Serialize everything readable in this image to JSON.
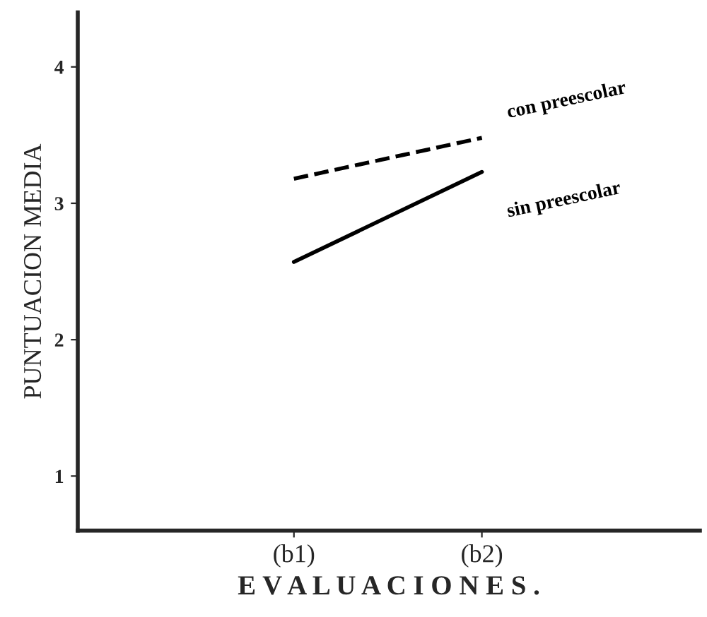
{
  "chart_data": {
    "type": "line",
    "xlabel": "E V A L U A C I O N E S .",
    "ylabel": "PUNTUACION MEDIA",
    "categories": [
      "(b1)",
      "(b2)"
    ],
    "series": [
      {
        "name": "con preescolar",
        "color": "#000000",
        "line_style": "dashed",
        "values": [
          3.18,
          3.48
        ]
      },
      {
        "name": "sin preescolar",
        "color": "#000000",
        "line_style": "solid",
        "values": [
          2.57,
          3.23
        ]
      }
    ],
    "ylim": [
      0.6,
      4.4
    ],
    "yticks": [
      1,
      2,
      3,
      4
    ],
    "grid": false,
    "legend": false
  }
}
